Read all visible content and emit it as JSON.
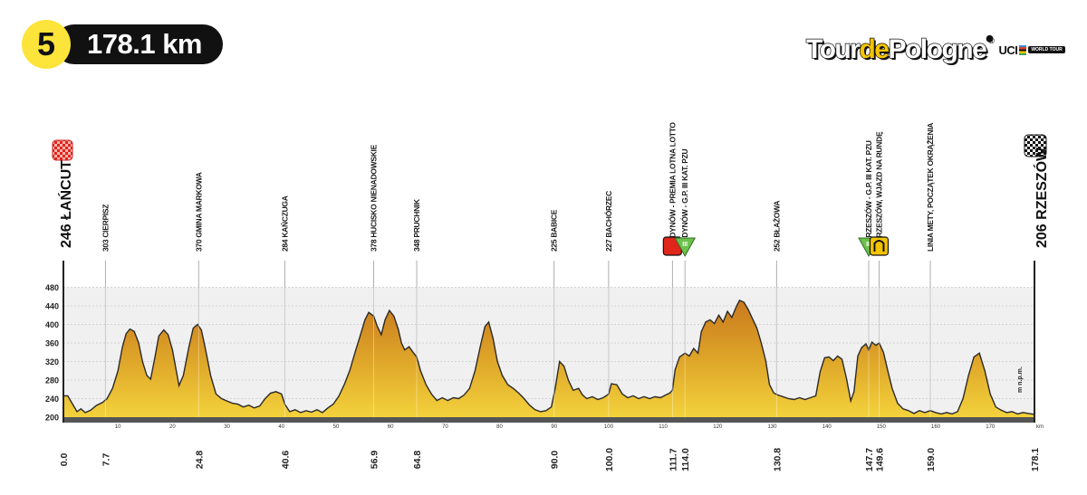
{
  "stage": {
    "number": "5",
    "distance": "178.1 km"
  },
  "logo": {
    "part1": "Tour",
    "part2": "de",
    "part3": "Pologne",
    "reg": "®",
    "uci": "UCI",
    "uci_tag": "WORLD TOUR"
  },
  "colors": {
    "badge_yellow": "#fce43a",
    "profile_top": "#c9791d",
    "profile_bottom": "#f3d23c",
    "sprint_red": "#e0251b",
    "kom_green": "#6cc24a",
    "lap_yellow": "#f5c400"
  },
  "chart_data": {
    "type": "area",
    "start": {
      "label": "246 ŁAŃCUT",
      "icon": "checkered-red-flag-icon"
    },
    "finish": {
      "label": "206 RZESZÓW",
      "icon": "checkered-flag-icon"
    },
    "ylabel": "m n.p.m.",
    "xlabel": "km",
    "ylim": [
      180,
      490
    ],
    "xlim": [
      0,
      178.1
    ],
    "yticks": [
      200,
      240,
      280,
      320,
      360,
      400,
      440,
      480
    ],
    "xticks_minor": [
      10,
      20,
      30,
      40,
      50,
      60,
      70,
      80,
      90,
      100,
      110,
      120,
      130,
      140,
      150,
      160,
      170
    ],
    "waypoints": [
      {
        "km": 0.0,
        "km_label": "0.0",
        "label": ""
      },
      {
        "km": 7.7,
        "km_label": "7.7",
        "label": "303 CIERPISZ"
      },
      {
        "km": 24.8,
        "km_label": "24.8",
        "label": "370 GMINA MARKOWA"
      },
      {
        "km": 40.6,
        "km_label": "40.6",
        "label": "284 KAŃCZUGA"
      },
      {
        "km": 56.9,
        "km_label": "56.9",
        "label": "378 HUCISKO NIENADOWSKIE"
      },
      {
        "km": 64.8,
        "km_label": "64.8",
        "label": "348 PRUCHNIK"
      },
      {
        "km": 90.0,
        "km_label": "90.0",
        "label": "225 BABICE"
      },
      {
        "km": 100.0,
        "km_label": "100.0",
        "label": "227 BACHÓRZEC"
      },
      {
        "km": 111.7,
        "km_label": "111.7",
        "label": "254 DYNÓW - PREMIA LOTNA LOTTO",
        "marker": "sprint"
      },
      {
        "km": 114.0,
        "km_label": "114.0",
        "label": "325 DYNÓW - G.P. III KAT. PZU",
        "marker": "kom"
      },
      {
        "km": 130.8,
        "km_label": "130.8",
        "label": "252 BŁAŻOWA"
      },
      {
        "km": 147.7,
        "km_label": "147.7",
        "label": "354 RZESZÓW - G.P. III KAT. PZU",
        "marker": "kom"
      },
      {
        "km": 149.6,
        "km_label": "149.6",
        "label": "346 RZESZÓW, WJAZD NA RUNDĘ",
        "marker": "lap"
      },
      {
        "km": 159.0,
        "km_label": "159.0",
        "label": "LINIA METY, POCZĄTEK OKRĄŻENIA"
      },
      {
        "km": 178.1,
        "km_label": "178.1",
        "label": ""
      }
    ],
    "profile": [
      [
        0,
        246
      ],
      [
        0.8,
        246
      ],
      [
        1.5,
        232
      ],
      [
        2.5,
        212
      ],
      [
        3.2,
        218
      ],
      [
        4,
        210
      ],
      [
        5,
        215
      ],
      [
        6,
        225
      ],
      [
        7.2,
        232
      ],
      [
        8,
        240
      ],
      [
        9,
        262
      ],
      [
        10,
        300
      ],
      [
        10.8,
        350
      ],
      [
        11.5,
        380
      ],
      [
        12.2,
        390
      ],
      [
        13,
        385
      ],
      [
        13.8,
        360
      ],
      [
        14.5,
        320
      ],
      [
        15.3,
        290
      ],
      [
        16,
        282
      ],
      [
        16.8,
        330
      ],
      [
        17.5,
        375
      ],
      [
        18.4,
        388
      ],
      [
        19.2,
        378
      ],
      [
        20,
        345
      ],
      [
        20.7,
        300
      ],
      [
        21.2,
        268
      ],
      [
        22,
        290
      ],
      [
        23,
        350
      ],
      [
        23.8,
        392
      ],
      [
        24.6,
        400
      ],
      [
        25.3,
        388
      ],
      [
        26,
        350
      ],
      [
        27,
        290
      ],
      [
        28,
        250
      ],
      [
        29,
        240
      ],
      [
        30,
        235
      ],
      [
        31,
        230
      ],
      [
        32,
        228
      ],
      [
        33,
        222
      ],
      [
        34,
        226
      ],
      [
        35,
        220
      ],
      [
        36,
        224
      ],
      [
        37,
        240
      ],
      [
        38,
        252
      ],
      [
        39,
        255
      ],
      [
        40,
        250
      ],
      [
        40.6,
        228
      ],
      [
        41.5,
        212
      ],
      [
        42.5,
        216
      ],
      [
        43.5,
        210
      ],
      [
        44.5,
        214
      ],
      [
        45.5,
        211
      ],
      [
        46.5,
        216
      ],
      [
        47.5,
        210
      ],
      [
        48.5,
        220
      ],
      [
        49.5,
        228
      ],
      [
        50.5,
        245
      ],
      [
        51.5,
        270
      ],
      [
        52.5,
        300
      ],
      [
        53.5,
        340
      ],
      [
        54.5,
        378
      ],
      [
        55.3,
        410
      ],
      [
        56,
        426
      ],
      [
        56.9,
        418
      ],
      [
        57.6,
        395
      ],
      [
        58.3,
        378
      ],
      [
        59,
        410
      ],
      [
        59.8,
        430
      ],
      [
        60.6,
        418
      ],
      [
        61.4,
        390
      ],
      [
        62,
        360
      ],
      [
        62.6,
        345
      ],
      [
        63.4,
        352
      ],
      [
        64,
        342
      ],
      [
        64.8,
        330
      ],
      [
        65.5,
        300
      ],
      [
        66.5,
        270
      ],
      [
        67.5,
        250
      ],
      [
        68.5,
        236
      ],
      [
        69.5,
        242
      ],
      [
        70.5,
        236
      ],
      [
        71.5,
        242
      ],
      [
        72.5,
        240
      ],
      [
        73.5,
        248
      ],
      [
        74.5,
        262
      ],
      [
        75.5,
        300
      ],
      [
        76.5,
        355
      ],
      [
        77.3,
        395
      ],
      [
        78,
        405
      ],
      [
        78.8,
        370
      ],
      [
        79.6,
        320
      ],
      [
        80.5,
        290
      ],
      [
        81.5,
        270
      ],
      [
        82.5,
        262
      ],
      [
        83.5,
        252
      ],
      [
        84.5,
        240
      ],
      [
        85.5,
        226
      ],
      [
        86.5,
        216
      ],
      [
        87.5,
        212
      ],
      [
        88.5,
        214
      ],
      [
        89.5,
        222
      ],
      [
        90.2,
        262
      ],
      [
        91,
        320
      ],
      [
        91.8,
        310
      ],
      [
        92.6,
        280
      ],
      [
        93.5,
        258
      ],
      [
        94.5,
        262
      ],
      [
        95.2,
        248
      ],
      [
        96,
        240
      ],
      [
        97,
        244
      ],
      [
        98,
        238
      ],
      [
        99,
        242
      ],
      [
        100,
        250
      ],
      [
        100.5,
        272
      ],
      [
        101.5,
        270
      ],
      [
        102.5,
        250
      ],
      [
        103.5,
        242
      ],
      [
        104.5,
        246
      ],
      [
        105.5,
        240
      ],
      [
        106.5,
        244
      ],
      [
        107.5,
        240
      ],
      [
        108.5,
        244
      ],
      [
        109.5,
        242
      ],
      [
        110.5,
        248
      ],
      [
        111.2,
        252
      ],
      [
        111.7,
        258
      ],
      [
        112.2,
        302
      ],
      [
        113,
        330
      ],
      [
        114,
        338
      ],
      [
        114.8,
        332
      ],
      [
        115.6,
        348
      ],
      [
        116.4,
        338
      ],
      [
        117,
        384
      ],
      [
        117.8,
        405
      ],
      [
        118.6,
        410
      ],
      [
        119.4,
        402
      ],
      [
        120.2,
        420
      ],
      [
        121,
        405
      ],
      [
        121.8,
        428
      ],
      [
        122.6,
        415
      ],
      [
        123.4,
        438
      ],
      [
        124,
        452
      ],
      [
        124.8,
        448
      ],
      [
        125.6,
        432
      ],
      [
        126.4,
        412
      ],
      [
        127.2,
        392
      ],
      [
        128,
        360
      ],
      [
        128.8,
        322
      ],
      [
        129.5,
        270
      ],
      [
        130.3,
        252
      ],
      [
        131,
        248
      ],
      [
        132,
        244
      ],
      [
        133,
        240
      ],
      [
        134,
        238
      ],
      [
        135,
        242
      ],
      [
        136,
        238
      ],
      [
        137,
        242
      ],
      [
        138,
        246
      ],
      [
        138.8,
        298
      ],
      [
        139.6,
        328
      ],
      [
        140.4,
        330
      ],
      [
        141.2,
        322
      ],
      [
        142,
        332
      ],
      [
        142.8,
        325
      ],
      [
        143.6,
        285
      ],
      [
        144.4,
        235
      ],
      [
        145,
        255
      ],
      [
        145.7,
        332
      ],
      [
        146.4,
        350
      ],
      [
        147.2,
        358
      ],
      [
        147.7,
        345
      ],
      [
        148.3,
        362
      ],
      [
        149,
        355
      ],
      [
        149.6,
        360
      ],
      [
        150.4,
        340
      ],
      [
        151.2,
        300
      ],
      [
        152,
        262
      ],
      [
        153,
        230
      ],
      [
        154,
        218
      ],
      [
        155,
        214
      ],
      [
        156,
        208
      ],
      [
        157,
        214
      ],
      [
        158,
        210
      ],
      [
        159,
        214
      ],
      [
        160,
        210
      ],
      [
        161,
        207
      ],
      [
        162,
        210
      ],
      [
        163,
        207
      ],
      [
        164,
        212
      ],
      [
        165,
        240
      ],
      [
        166,
        290
      ],
      [
        167,
        330
      ],
      [
        168,
        338
      ],
      [
        169,
        300
      ],
      [
        170,
        250
      ],
      [
        171,
        222
      ],
      [
        172,
        215
      ],
      [
        173,
        210
      ],
      [
        174,
        212
      ],
      [
        175,
        207
      ],
      [
        176,
        210
      ],
      [
        177,
        208
      ],
      [
        178.1,
        206
      ]
    ]
  }
}
